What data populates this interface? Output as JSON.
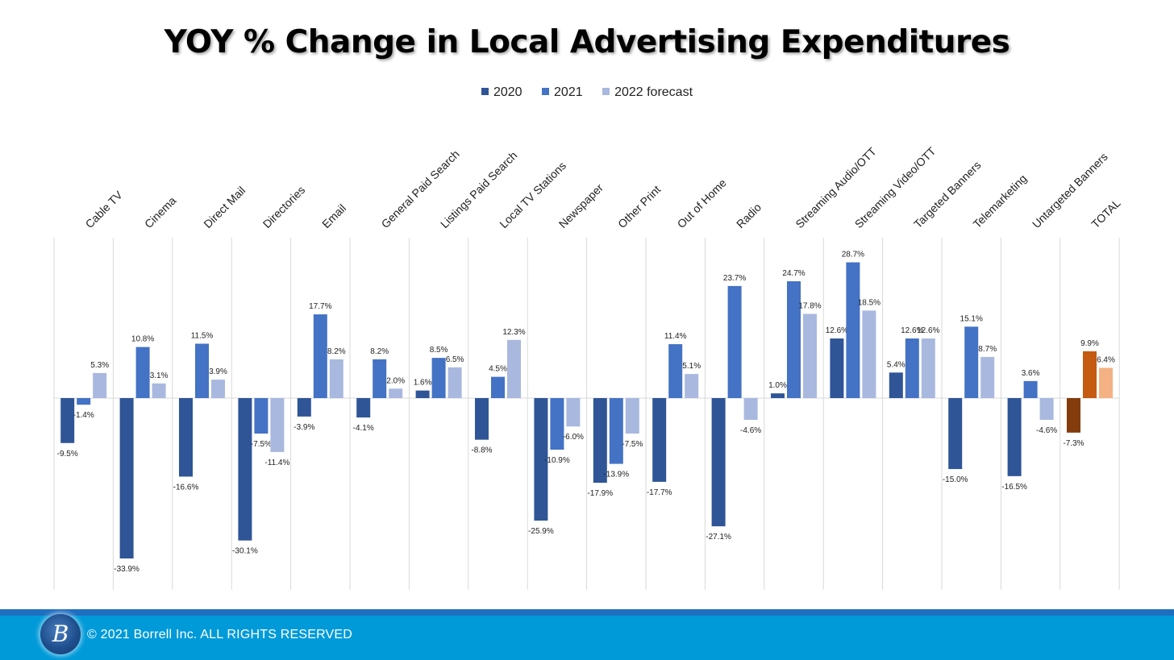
{
  "chart_data": {
    "type": "bar",
    "title": "YOY % Change in Local Advertising Expenditures",
    "categories": [
      "Cable TV",
      "Cinema",
      "Direct Mail",
      "Directories",
      "Email",
      "General Paid Search",
      "Listings Paid Search",
      "Local TV Stations",
      "Newspaper",
      "Other Print",
      "Out of Home",
      "Radio",
      "Streaming Audio/OTT",
      "Streaming Video/OTT",
      "Targeted Banners",
      "Telemarketing",
      "Untargeted Banners",
      "TOTAL"
    ],
    "series": [
      {
        "name": "2020",
        "color": "#2f5597",
        "values": [
          -9.5,
          -33.9,
          -16.6,
          -30.1,
          -3.9,
          -4.1,
          1.6,
          -8.8,
          -25.9,
          -17.9,
          -17.7,
          -27.1,
          1.0,
          12.6,
          5.4,
          -15.0,
          -16.5,
          -7.3
        ],
        "labels": [
          "-9.5%",
          "-33.9%",
          "-16.6%",
          "-30.1%",
          "-3.9%",
          "-4.1%",
          "1.6%",
          "-8.8%",
          "-25.9%",
          "-17.9%",
          "-17.7%",
          "-27.1%",
          "1.0%",
          "12.6%",
          "5.4%",
          "-15.0%",
          "-16.5%",
          "-7.3%"
        ]
      },
      {
        "name": "2021",
        "color": "#4472c4",
        "values": [
          -1.4,
          10.8,
          11.5,
          -7.5,
          17.7,
          8.2,
          8.5,
          4.5,
          -10.9,
          -13.9,
          11.4,
          23.7,
          24.7,
          28.7,
          12.6,
          15.1,
          3.6,
          9.9
        ],
        "labels": [
          "-1.4%",
          "10.8%",
          "11.5%",
          "-7.5%",
          "17.7%",
          "8.2%",
          "8.5%",
          "4.5%",
          "-10.9%",
          "-13.9%",
          "11.4%",
          "23.7%",
          "24.7%",
          "28.7%",
          "12.6%",
          "15.1%",
          "3.6%",
          "9.9%"
        ]
      },
      {
        "name": "2022 forecast",
        "color": "#a9b8de",
        "values": [
          5.3,
          3.1,
          3.9,
          -11.4,
          8.2,
          2.0,
          6.5,
          12.3,
          -6.0,
          -7.5,
          5.1,
          -4.6,
          17.8,
          18.5,
          12.6,
          8.7,
          -4.6,
          6.4
        ],
        "labels": [
          "5.3%",
          "3.1%",
          "3.9%",
          "-11.4%",
          "8.2%",
          "2.0%",
          "6.5%",
          "12.3%",
          "-6.0%",
          "-7.5%",
          "5.1%",
          "-4.6%",
          "17.8%",
          "18.5%",
          "12.6%",
          "8.7%",
          "-4.6%",
          "6.4%"
        ]
      }
    ],
    "highlight_category": "TOTAL",
    "highlight_colors": [
      "#843c0c",
      "#c55a11",
      "#f4b183"
    ],
    "legend_position": "top",
    "grid": "vertical category separators",
    "value_axis": "hidden"
  },
  "footer": {
    "logo_letter": "B",
    "copyright": "© 2021 Borrell Inc.  ALL RIGHTS RESERVED",
    "stripe_color": "#1f6fc1",
    "bar_color": "#009ad9"
  }
}
